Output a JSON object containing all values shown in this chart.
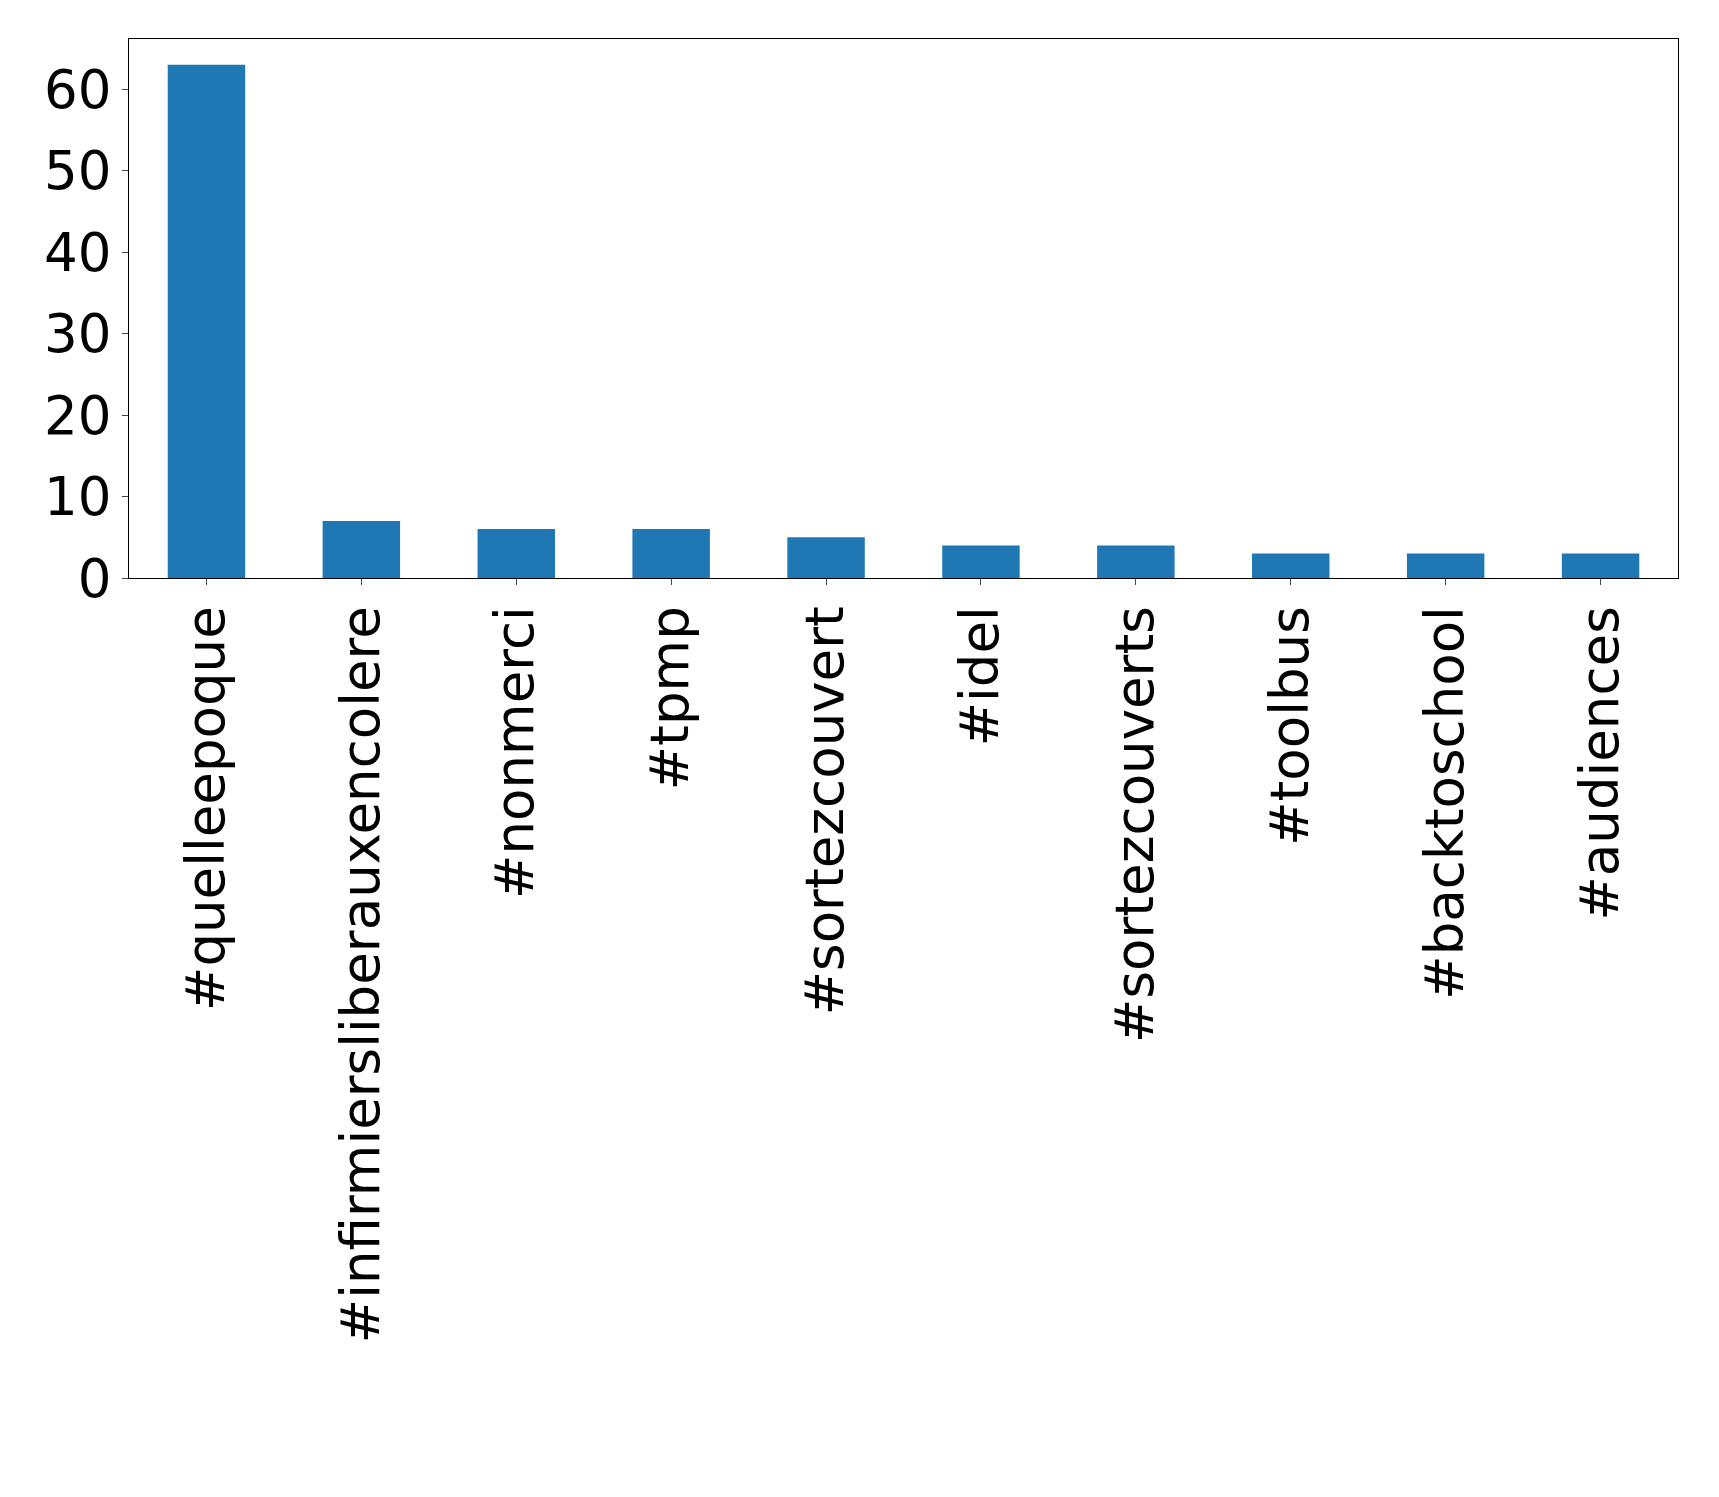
{
  "chart_data": {
    "type": "bar",
    "categories": [
      "#quelleepoque",
      "#infirmiersliberauxencolere",
      "#nonmerci",
      "#tpmp",
      "#sortezcouvert",
      "#idel",
      "#sortezcouverts",
      "#toolbus",
      "#backtoschool",
      "#audiences"
    ],
    "values": [
      63,
      7,
      6,
      6,
      5,
      4,
      4,
      3,
      3,
      3
    ],
    "color": "#1f77b4",
    "ylim": [
      0,
      66.15
    ],
    "yticks": [
      0,
      10,
      20,
      30,
      40,
      50,
      60
    ]
  }
}
